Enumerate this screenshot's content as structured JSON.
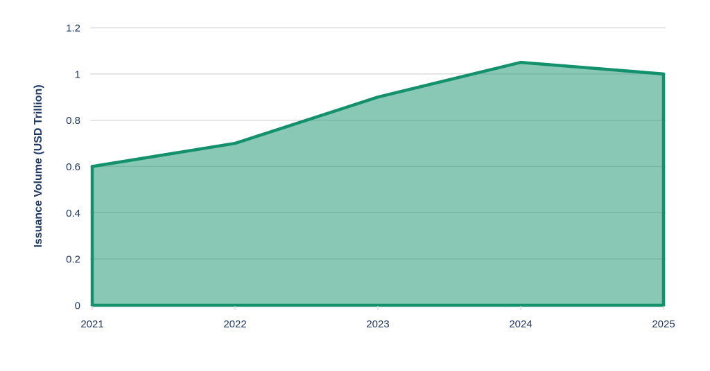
{
  "figure": {
    "background": "#ffffff"
  },
  "chart_data": {
    "type": "area",
    "title": "",
    "xlabel": "",
    "ylabel": "Issuance Volume (USD Trillion)",
    "x": [
      2021,
      2022,
      2023,
      2024,
      2025
    ],
    "x_tick_labels": [
      "2021",
      "2022",
      "2023",
      "2024",
      "2025"
    ],
    "series": [
      {
        "name": "Issuance Volume (USD Trillion)",
        "values": [
          0.6,
          0.7,
          0.9,
          1.05,
          1.0
        ]
      }
    ],
    "ylim": [
      0,
      1.2
    ],
    "y_ticks": [
      0,
      0.2,
      0.4,
      0.6,
      0.8,
      1,
      1.2
    ],
    "y_tick_labels": [
      "0",
      "0.2",
      "0.4",
      "0.6",
      "0.8",
      "1",
      "1.2"
    ],
    "grid": "horizontal",
    "legend": "none",
    "colors": {
      "line": "#12916C",
      "fill": "#12916C",
      "fill_opacity": 0.5,
      "grid": "#D9D9D9",
      "tick": "#D9D9D9",
      "text": "#1F3864"
    }
  }
}
